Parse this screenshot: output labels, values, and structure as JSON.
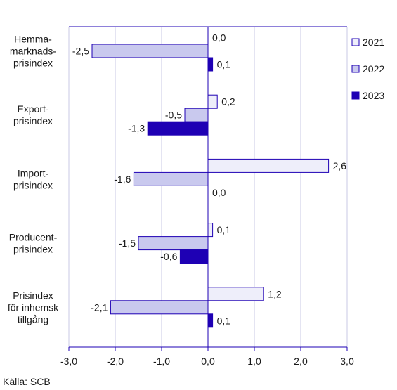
{
  "chart_data": {
    "type": "bar",
    "orientation": "horizontal",
    "categories": [
      [
        "Hemma-",
        "marknads-",
        "prisindex"
      ],
      [
        "Export-",
        "prisindex"
      ],
      [
        "Import-",
        "prisindex"
      ],
      [
        "Producent-",
        "prisindex"
      ],
      [
        "Prisindex",
        "för inhemsk",
        "tillgång"
      ]
    ],
    "series": [
      {
        "name": "2021",
        "color": "#eeeefa",
        "values": [
          0.0,
          0.2,
          2.6,
          0.1,
          1.2
        ]
      },
      {
        "name": "2022",
        "color": "#c9c9ee",
        "values": [
          -2.5,
          -0.5,
          -1.6,
          -1.5,
          -2.1
        ]
      },
      {
        "name": "2023",
        "color": "#1e00b4",
        "values": [
          0.1,
          -1.3,
          0.0,
          -0.6,
          0.1
        ]
      }
    ],
    "xlim": [
      -3.0,
      3.0
    ],
    "xticks": [
      -3.0,
      -2.0,
      -1.0,
      0.0,
      1.0,
      2.0,
      3.0
    ],
    "grid": true,
    "legend": "right",
    "decimal_separator": ","
  },
  "source": "Källa: SCB"
}
